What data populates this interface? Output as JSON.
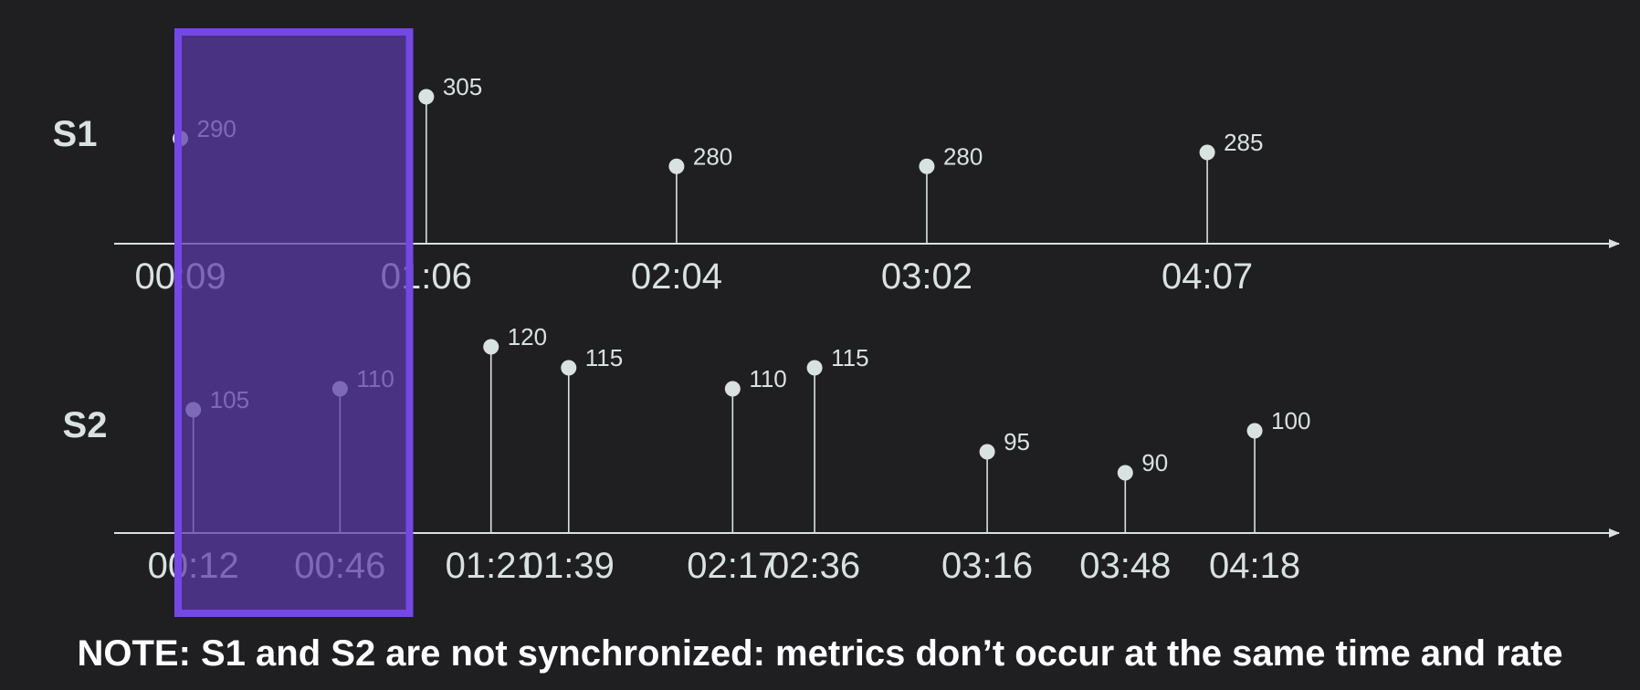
{
  "colors": {
    "background": "#1f1f22",
    "axis": "#d8e2df",
    "point": "#d8e2df",
    "highlight_fill": "#5b3aa8",
    "highlight_border": "#7447e6",
    "note": "#ffffff"
  },
  "note": "NOTE: S1 and S2 are not synchronized: metrics don’t occur at the same time and rate",
  "chart_data": {
    "type": "scatter",
    "series": [
      {
        "name": "S1",
        "points": [
          {
            "time": "00:09",
            "value": 290
          },
          {
            "time": "01:06",
            "value": 305
          },
          {
            "time": "02:04",
            "value": 280
          },
          {
            "time": "03:02",
            "value": 280
          },
          {
            "time": "04:07",
            "value": 285
          }
        ]
      },
      {
        "name": "S2",
        "points": [
          {
            "time": "00:12",
            "value": 105
          },
          {
            "time": "00:46",
            "value": 110
          },
          {
            "time": "01:21",
            "value": 120
          },
          {
            "time": "01:39",
            "value": 115
          },
          {
            "time": "02:17",
            "value": 110
          },
          {
            "time": "02:36",
            "value": 115
          },
          {
            "time": "03:16",
            "value": 95
          },
          {
            "time": "03:48",
            "value": 90
          },
          {
            "time": "04:18",
            "value": 100
          }
        ]
      }
    ],
    "highlight_window": {
      "start": "00:00",
      "end": "01:00"
    }
  }
}
